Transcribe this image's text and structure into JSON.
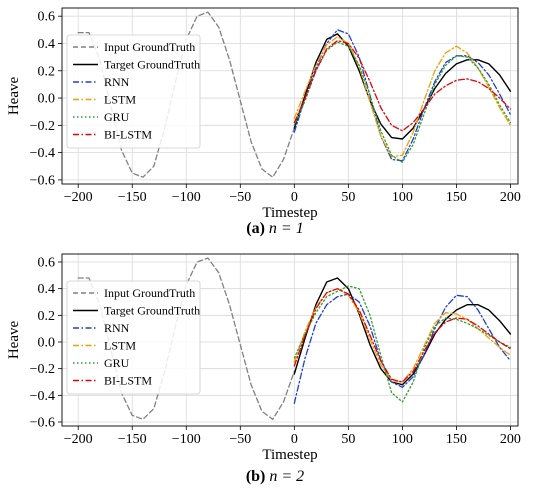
{
  "chart_data": [
    {
      "type": "line",
      "caption": {
        "prefix": "(a)",
        "label": "n = 1"
      },
      "xlabel": "Timestep",
      "ylabel": "Heave",
      "xlim": [
        -215,
        207
      ],
      "ylim": [
        -0.63,
        0.66
      ],
      "xticks": [
        -200,
        -150,
        -100,
        -50,
        0,
        50,
        100,
        150,
        200
      ],
      "yticks": [
        -0.6,
        -0.4,
        -0.2,
        0.0,
        0.2,
        0.4,
        0.6
      ],
      "grid": true,
      "legend_position": "upper-left",
      "series": [
        {
          "name": "Input GroundTruth",
          "color": "#808080",
          "style": "dashed",
          "x": [
            -200,
            -190,
            -180,
            -170,
            -160,
            -150,
            -140,
            -130,
            -120,
            -110,
            -100,
            -90,
            -80,
            -70,
            -60,
            -50,
            -40,
            -30,
            -20,
            -10,
            0
          ],
          "y": [
            0.48,
            0.48,
            0.28,
            -0.05,
            -0.38,
            -0.55,
            -0.58,
            -0.5,
            -0.22,
            0.12,
            0.43,
            0.6,
            0.63,
            0.52,
            0.28,
            -0.02,
            -0.32,
            -0.52,
            -0.58,
            -0.45,
            -0.22
          ]
        },
        {
          "name": "Target GroundTruth",
          "color": "#000000",
          "style": "solid",
          "x": [
            0,
            10,
            20,
            30,
            40,
            50,
            60,
            70,
            80,
            90,
            100,
            110,
            120,
            130,
            140,
            150,
            160,
            170,
            180,
            190,
            200
          ],
          "y": [
            -0.22,
            0.02,
            0.26,
            0.43,
            0.47,
            0.38,
            0.2,
            -0.02,
            -0.19,
            -0.29,
            -0.3,
            -0.22,
            -0.08,
            0.07,
            0.18,
            0.25,
            0.28,
            0.28,
            0.25,
            0.17,
            0.05
          ]
        },
        {
          "name": "RNN",
          "color": "#1f3fd6",
          "style": "dashdot",
          "x": [
            0,
            10,
            20,
            30,
            40,
            50,
            60,
            70,
            80,
            90,
            100,
            110,
            120,
            130,
            140,
            150,
            160,
            170,
            180,
            190,
            200
          ],
          "y": [
            -0.25,
            0.0,
            0.22,
            0.4,
            0.5,
            0.47,
            0.3,
            0.02,
            -0.28,
            -0.45,
            -0.46,
            -0.3,
            -0.08,
            0.12,
            0.26,
            0.31,
            0.31,
            0.26,
            0.17,
            0.03,
            -0.12
          ]
        },
        {
          "name": "LSTM",
          "color": "#f0a000",
          "style": "dashdot",
          "x": [
            0,
            10,
            20,
            30,
            40,
            50,
            60,
            70,
            80,
            90,
            100,
            110,
            120,
            130,
            140,
            150,
            160,
            170,
            180,
            190,
            200
          ],
          "y": [
            -0.15,
            0.05,
            0.24,
            0.39,
            0.45,
            0.4,
            0.23,
            -0.03,
            -0.28,
            -0.43,
            -0.42,
            -0.25,
            -0.02,
            0.2,
            0.33,
            0.38,
            0.33,
            0.22,
            0.08,
            -0.07,
            -0.2
          ]
        },
        {
          "name": "GRU",
          "color": "#2ca02c",
          "style": "dotted",
          "x": [
            0,
            10,
            20,
            30,
            40,
            50,
            60,
            70,
            80,
            90,
            100,
            110,
            120,
            130,
            140,
            150,
            160,
            170,
            180,
            190,
            200
          ],
          "y": [
            -0.2,
            -0.02,
            0.2,
            0.35,
            0.41,
            0.38,
            0.24,
            0.02,
            -0.24,
            -0.42,
            -0.47,
            -0.34,
            -0.12,
            0.1,
            0.24,
            0.31,
            0.3,
            0.22,
            0.1,
            -0.05,
            -0.18
          ]
        },
        {
          "name": "BI-LSTM",
          "color": "#e8000b",
          "style": "dashdot",
          "x": [
            0,
            10,
            20,
            30,
            40,
            50,
            60,
            70,
            80,
            90,
            100,
            110,
            120,
            130,
            140,
            150,
            160,
            170,
            180,
            190,
            200
          ],
          "y": [
            -0.18,
            0.0,
            0.2,
            0.36,
            0.42,
            0.4,
            0.29,
            0.12,
            -0.07,
            -0.2,
            -0.24,
            -0.18,
            -0.08,
            0.03,
            0.09,
            0.13,
            0.14,
            0.12,
            0.07,
            0.0,
            -0.08
          ]
        }
      ]
    },
    {
      "type": "line",
      "caption": {
        "prefix": "(b)",
        "label": "n = 2"
      },
      "xlabel": "Timestep",
      "ylabel": "Heave",
      "xlim": [
        -215,
        207
      ],
      "ylim": [
        -0.63,
        0.66
      ],
      "xticks": [
        -200,
        -150,
        -100,
        -50,
        0,
        50,
        100,
        150,
        200
      ],
      "yticks": [
        -0.6,
        -0.4,
        -0.2,
        0.0,
        0.2,
        0.4,
        0.6
      ],
      "grid": true,
      "legend_position": "upper-left",
      "series": [
        {
          "name": "Input GroundTruth",
          "color": "#808080",
          "style": "dashed",
          "x": [
            -200,
            -190,
            -180,
            -170,
            -160,
            -150,
            -140,
            -130,
            -120,
            -110,
            -100,
            -90,
            -80,
            -70,
            -60,
            -50,
            -40,
            -30,
            -20,
            -10,
            0
          ],
          "y": [
            0.48,
            0.48,
            0.28,
            -0.05,
            -0.38,
            -0.55,
            -0.58,
            -0.5,
            -0.22,
            0.12,
            0.43,
            0.6,
            0.63,
            0.52,
            0.28,
            -0.02,
            -0.32,
            -0.52,
            -0.58,
            -0.45,
            -0.22
          ]
        },
        {
          "name": "Target GroundTruth",
          "color": "#000000",
          "style": "solid",
          "x": [
            0,
            10,
            20,
            30,
            40,
            50,
            60,
            70,
            80,
            90,
            100,
            110,
            120,
            130,
            140,
            150,
            160,
            170,
            180,
            190,
            200
          ],
          "y": [
            -0.24,
            0.03,
            0.28,
            0.45,
            0.48,
            0.4,
            0.21,
            -0.02,
            -0.2,
            -0.3,
            -0.32,
            -0.24,
            -0.1,
            0.06,
            0.17,
            0.24,
            0.28,
            0.28,
            0.24,
            0.16,
            0.06
          ]
        },
        {
          "name": "RNN",
          "color": "#1f3fd6",
          "style": "dashdot",
          "x": [
            0,
            10,
            20,
            30,
            40,
            50,
            60,
            70,
            80,
            90,
            100,
            110,
            120,
            130,
            140,
            150,
            160,
            170,
            180,
            190,
            200
          ],
          "y": [
            -0.46,
            -0.12,
            0.14,
            0.28,
            0.34,
            0.36,
            0.3,
            0.12,
            -0.14,
            -0.3,
            -0.34,
            -0.26,
            -0.1,
            0.1,
            0.26,
            0.35,
            0.34,
            0.24,
            0.1,
            -0.04,
            -0.14
          ]
        },
        {
          "name": "LSTM",
          "color": "#f0a000",
          "style": "dashdot",
          "x": [
            0,
            10,
            20,
            30,
            40,
            50,
            60,
            70,
            80,
            90,
            100,
            110,
            120,
            130,
            140,
            150,
            160,
            170,
            180,
            190,
            200
          ],
          "y": [
            -0.15,
            0.08,
            0.26,
            0.37,
            0.4,
            0.35,
            0.22,
            0.02,
            -0.17,
            -0.29,
            -0.3,
            -0.2,
            -0.03,
            0.14,
            0.22,
            0.21,
            0.17,
            0.1,
            0.03,
            -0.04,
            -0.1
          ]
        },
        {
          "name": "GRU",
          "color": "#2ca02c",
          "style": "dotted",
          "x": [
            0,
            10,
            20,
            30,
            40,
            50,
            60,
            70,
            80,
            90,
            100,
            110,
            120,
            130,
            140,
            150,
            160,
            170,
            180,
            190,
            200
          ],
          "y": [
            -0.12,
            0.06,
            0.22,
            0.34,
            0.38,
            0.42,
            0.4,
            0.2,
            -0.1,
            -0.38,
            -0.45,
            -0.3,
            -0.05,
            0.12,
            0.18,
            0.17,
            0.14,
            0.1,
            0.05,
            0.0,
            -0.04
          ]
        },
        {
          "name": "BI-LSTM",
          "color": "#e8000b",
          "style": "dashdot",
          "x": [
            0,
            10,
            20,
            30,
            40,
            50,
            60,
            70,
            80,
            90,
            100,
            110,
            120,
            130,
            140,
            150,
            160,
            170,
            180,
            190,
            200
          ],
          "y": [
            -0.18,
            0.05,
            0.25,
            0.37,
            0.4,
            0.36,
            0.24,
            0.05,
            -0.14,
            -0.28,
            -0.3,
            -0.22,
            -0.07,
            0.07,
            0.15,
            0.18,
            0.17,
            0.12,
            0.06,
            0.0,
            -0.05
          ]
        }
      ]
    }
  ]
}
